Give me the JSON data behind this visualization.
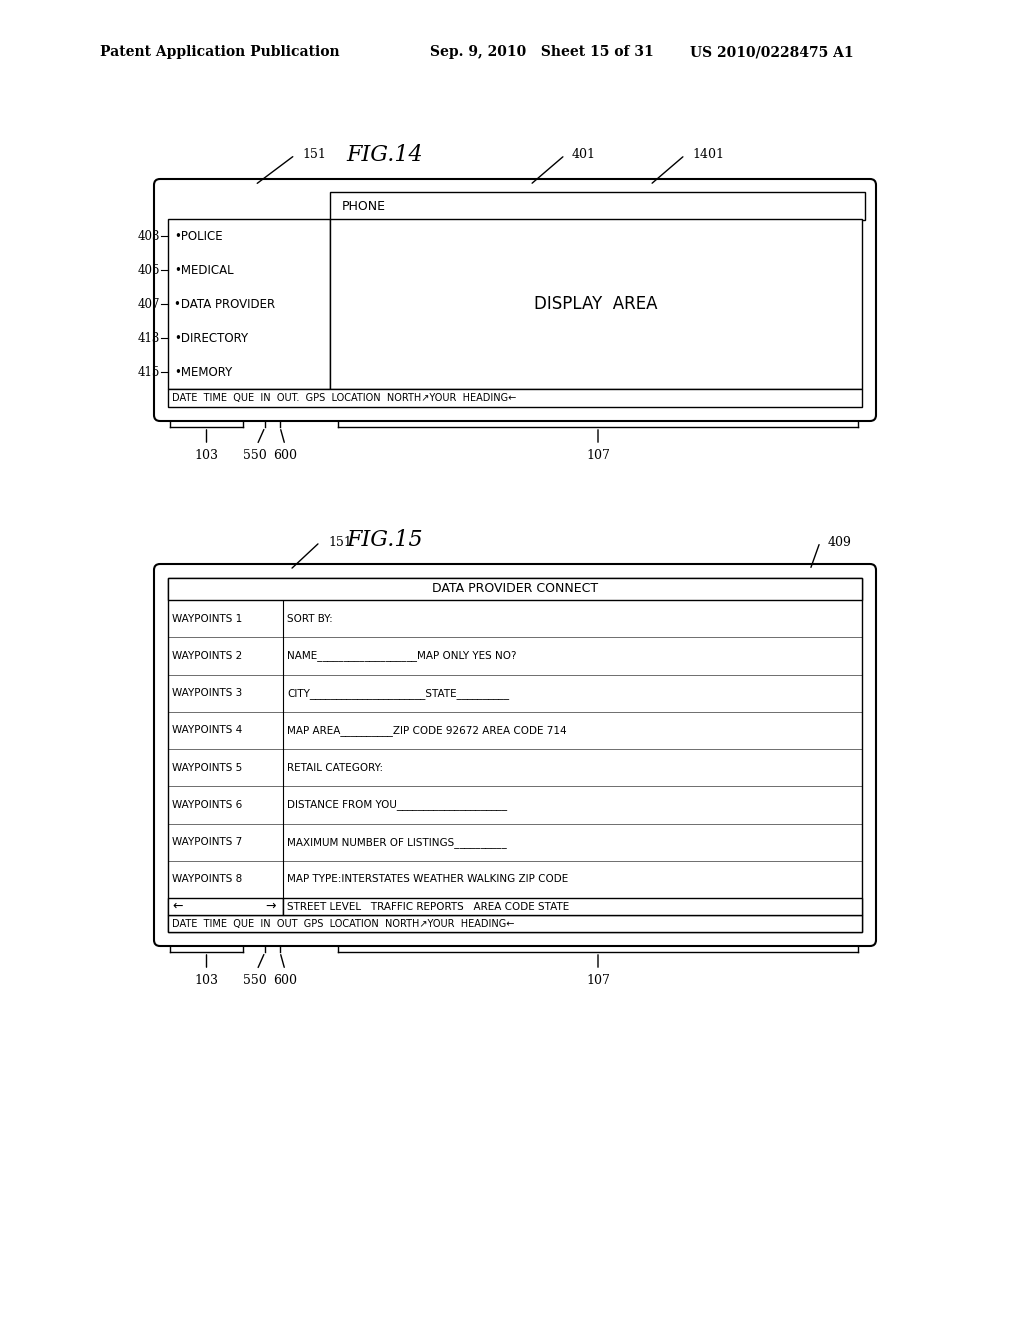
{
  "bg_color": "#ffffff",
  "header_left": "Patent Application Publication",
  "header_mid": "Sep. 9, 2010   Sheet 15 of 31",
  "header_right": "US 2010/0228475 A1",
  "fig14_title": "FIG.14",
  "fig15_title": "FIG.15",
  "fig14": {
    "phone_text": "PHONE",
    "display_area_text": "DISPLAY  AREA",
    "menu_items": [
      {
        "label": "403",
        "text": "•POLICE"
      },
      {
        "label": "405",
        "text": "•MEDICAL"
      },
      {
        "label": "407",
        "text": "•DATA PROVIDER"
      },
      {
        "label": "413",
        "text": "•DIRECTORY"
      },
      {
        "label": "415",
        "text": "•MEMORY"
      }
    ],
    "status_bar": "DATE  TIME  QUE  IN  OUT.  GPS  LOCATION  NORTH↗YOUR  HEADING←"
  },
  "fig15": {
    "title_text": "DATA PROVIDER CONNECT",
    "left_col": [
      "WAYPOINTS 1",
      "WAYPOINTS 2",
      "WAYPOINTS 3",
      "WAYPOINTS 4",
      "WAYPOINTS 5",
      "WAYPOINTS 6",
      "WAYPOINTS 7",
      "WAYPOINTS 8"
    ],
    "right_col": [
      "SORT BY:",
      "NAME___________________MAP ONLY YES NO?",
      "CITY______________________STATE__________",
      "MAP AREA__________ZIP CODE 92672 AREA CODE 714",
      "RETAIL CATEGORY:",
      "DISTANCE FROM YOU_____________________",
      "MAXIMUM NUMBER OF LISTINGS__________",
      "MAP TYPE:INTERSTATES WEATHER WALKING ZIP CODE"
    ],
    "scroll_bar_left": "←",
    "scroll_bar_right": "→",
    "street_level": "STREET LEVEL   TRAFFIC REPORTS   AREA CODE STATE",
    "status_bar": "DATE  TIME  QUE  IN  OUT  GPS  LOCATION  NORTH↗YOUR  HEADING←"
  }
}
